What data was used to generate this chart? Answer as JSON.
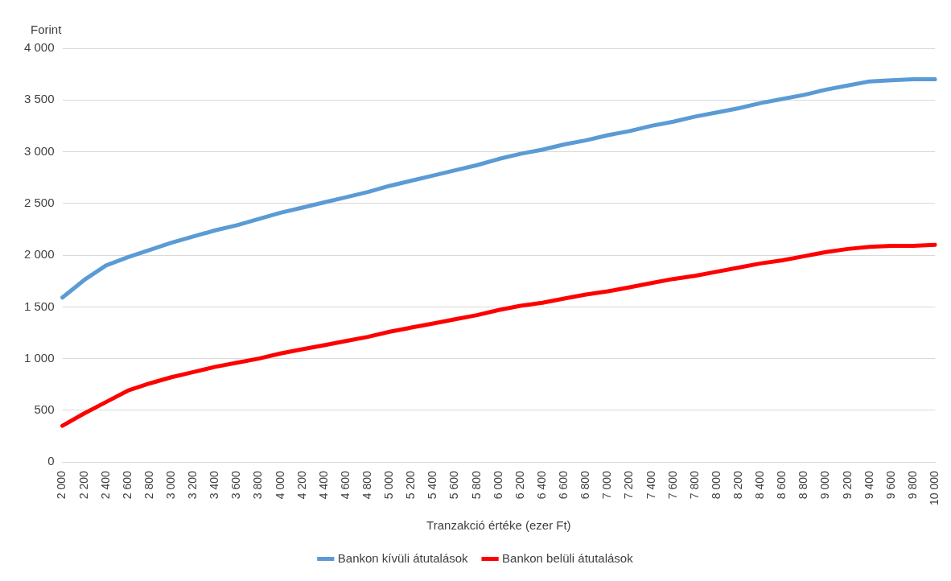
{
  "chart_data": {
    "type": "line",
    "ylabel": "Forint",
    "xlabel": "Tranzakció értéke (ezer Ft)",
    "categories": [
      "2 000",
      "2 200",
      "2 400",
      "2 600",
      "2 800",
      "3 000",
      "3 200",
      "3 400",
      "3 600",
      "3 800",
      "4 000",
      "4 200",
      "4 400",
      "4 600",
      "4 800",
      "5 000",
      "5 200",
      "5 400",
      "5 600",
      "5 800",
      "6 000",
      "6 200",
      "6 400",
      "6 600",
      "6 800",
      "7 000",
      "7 200",
      "7 400",
      "7 600",
      "7 800",
      "8 000",
      "8 200",
      "8 400",
      "8 600",
      "8 800",
      "9 000",
      "9 200",
      "9 400",
      "9 600",
      "9 800",
      "10 000"
    ],
    "series": [
      {
        "name": "Bankon kívüli átutalások",
        "color": "#5b9bd5",
        "values": [
          1590,
          1760,
          1900,
          1980,
          2050,
          2120,
          2180,
          2240,
          2290,
          2350,
          2410,
          2460,
          2510,
          2560,
          2610,
          2670,
          2720,
          2770,
          2820,
          2870,
          2930,
          2980,
          3020,
          3070,
          3110,
          3160,
          3200,
          3250,
          3290,
          3340,
          3380,
          3420,
          3470,
          3510,
          3550,
          3600,
          3640,
          3680,
          3690,
          3700,
          3700
        ]
      },
      {
        "name": "Bankon belüli átutalások",
        "color": "#ff0000",
        "values": [
          350,
          470,
          580,
          690,
          760,
          820,
          870,
          920,
          960,
          1000,
          1050,
          1090,
          1130,
          1170,
          1210,
          1260,
          1300,
          1340,
          1380,
          1420,
          1470,
          1510,
          1540,
          1580,
          1620,
          1650,
          1690,
          1730,
          1770,
          1800,
          1840,
          1880,
          1920,
          1950,
          1990,
          2030,
          2060,
          2080,
          2090,
          2090,
          2100
        ]
      }
    ],
    "ylim": [
      0,
      4000
    ],
    "yticks": [
      0,
      500,
      {
        "value": 1000,
        "label": "1 000"
      },
      {
        "value": 1500,
        "label": "1 500"
      },
      {
        "value": 2000,
        "label": "2 000"
      },
      {
        "value": 2500,
        "label": "2 500"
      },
      {
        "value": 3000,
        "label": "3 000"
      },
      {
        "value": 3500,
        "label": "3 500"
      },
      {
        "value": 4000,
        "label": "4 000"
      }
    ],
    "grid": "y",
    "legend": "bottom",
    "marker": "none",
    "line_style": "solid"
  }
}
